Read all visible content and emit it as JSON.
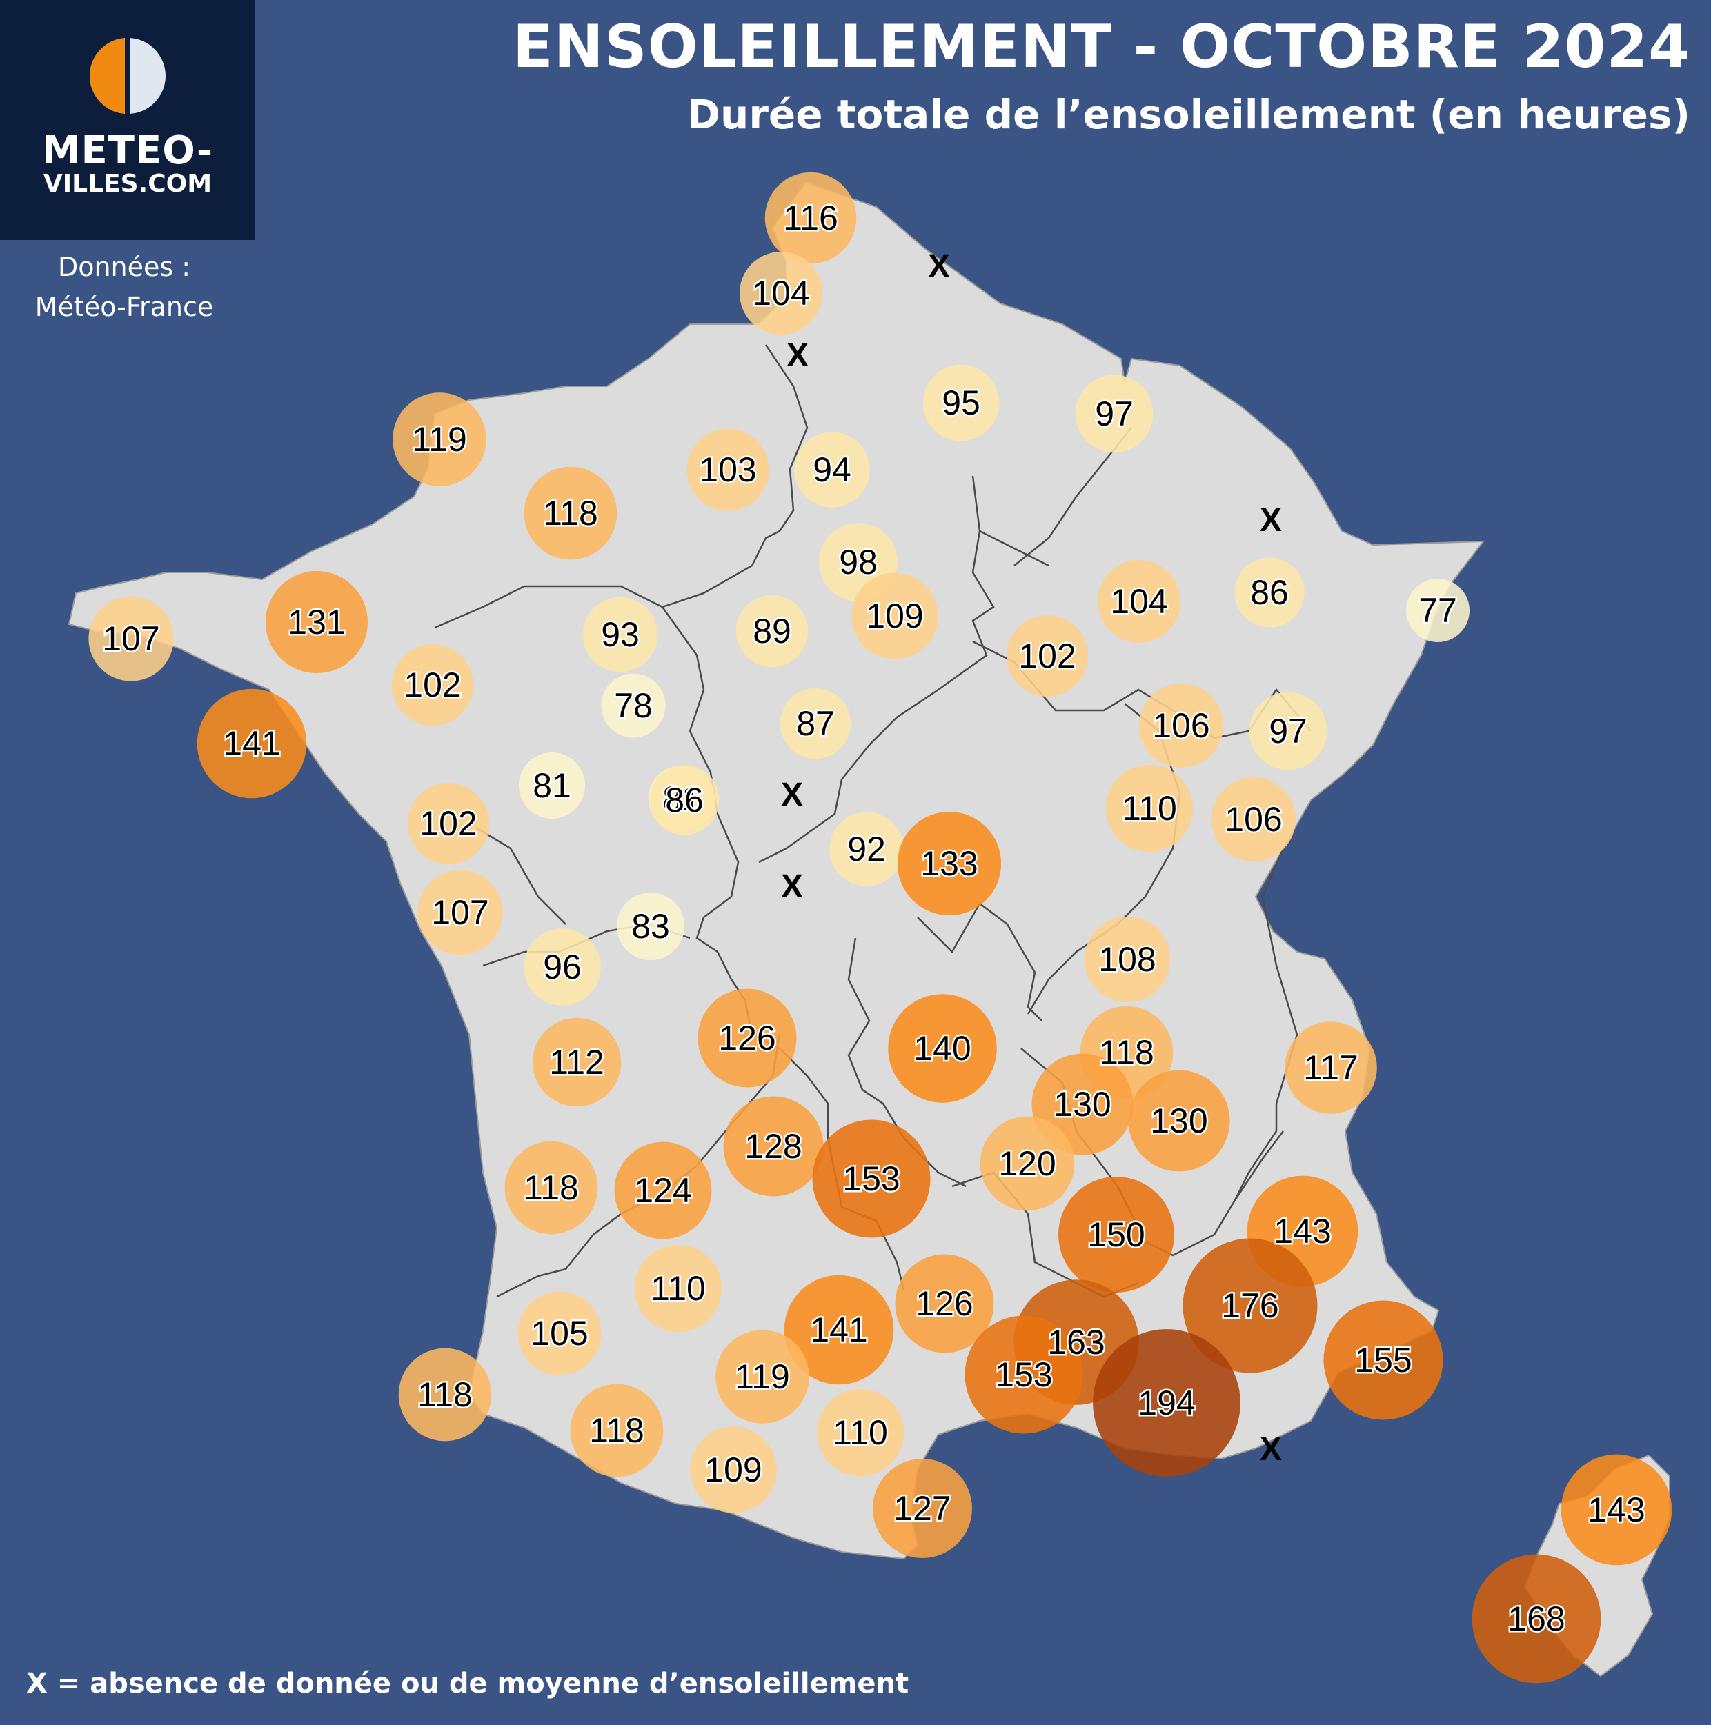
{
  "header": {
    "title": "ENSOLEILLEMENT - OCTOBRE 2024",
    "subtitle": "Durée totale de l’ensoleillement (en heures)"
  },
  "logo": {
    "line1": "METEO-",
    "line2": "VILLES.COM",
    "icon": "half-sun-icon"
  },
  "source": {
    "line1": "Données :",
    "line2": "Météo-France"
  },
  "footnote": "X = absence de donnée ou de moyenne d’ensoleillement",
  "missing_marker": "X",
  "colors": {
    "background": "#3a5485",
    "land": "#dcdcdc",
    "borders": "#4a4a4a",
    "logo_bg": "#0d1d3c",
    "scale": [
      "#fbf4cc",
      "#fde6a8",
      "#fdd08a",
      "#fcb861",
      "#fba040",
      "#f98c1d",
      "#e8730f",
      "#d0600e",
      "#a9410a"
    ]
  },
  "stations": [
    {
      "v": 116
    },
    {
      "v": 104
    },
    {
      "v": 95
    },
    {
      "v": 97
    },
    {
      "v": 119
    },
    {
      "v": 103
    },
    {
      "v": 94
    },
    {
      "v": 118
    },
    {
      "v": 98
    },
    {
      "v": 109
    },
    {
      "v": 104
    },
    {
      "v": 86
    },
    {
      "v": 77
    },
    {
      "v": 107
    },
    {
      "v": 131
    },
    {
      "v": 93
    },
    {
      "v": 89
    },
    {
      "v": 102
    },
    {
      "v": 102
    },
    {
      "v": 78
    },
    {
      "v": 87
    },
    {
      "v": 81
    },
    {
      "v": 106
    },
    {
      "v": 97
    },
    {
      "v": 141
    },
    {
      "v": 81
    },
    {
      "v": 86
    },
    {
      "v": 110
    },
    {
      "v": 106
    },
    {
      "v": 102
    },
    {
      "v": 92
    },
    {
      "v": 133
    },
    {
      "v": 107
    },
    {
      "v": 83
    },
    {
      "v": 96
    },
    {
      "v": 108
    },
    {
      "v": 126
    },
    {
      "v": 140
    },
    {
      "v": 112
    },
    {
      "v": 118
    },
    {
      "v": 117
    },
    {
      "v": 130
    },
    {
      "v": 130
    },
    {
      "v": 128
    },
    {
      "v": 153
    },
    {
      "v": 120
    },
    {
      "v": 118
    },
    {
      "v": 124
    },
    {
      "v": 150
    },
    {
      "v": 143
    },
    {
      "v": 110
    },
    {
      "v": 176
    },
    {
      "v": 141
    },
    {
      "v": 126
    },
    {
      "v": 163
    },
    {
      "v": 155
    },
    {
      "v": 105
    },
    {
      "v": 153
    },
    {
      "v": 119
    },
    {
      "v": 194
    },
    {
      "v": 118
    },
    {
      "v": 118
    },
    {
      "v": 110
    },
    {
      "v": 109
    },
    {
      "v": 127
    },
    {
      "v": 143
    },
    {
      "v": 168
    }
  ]
}
